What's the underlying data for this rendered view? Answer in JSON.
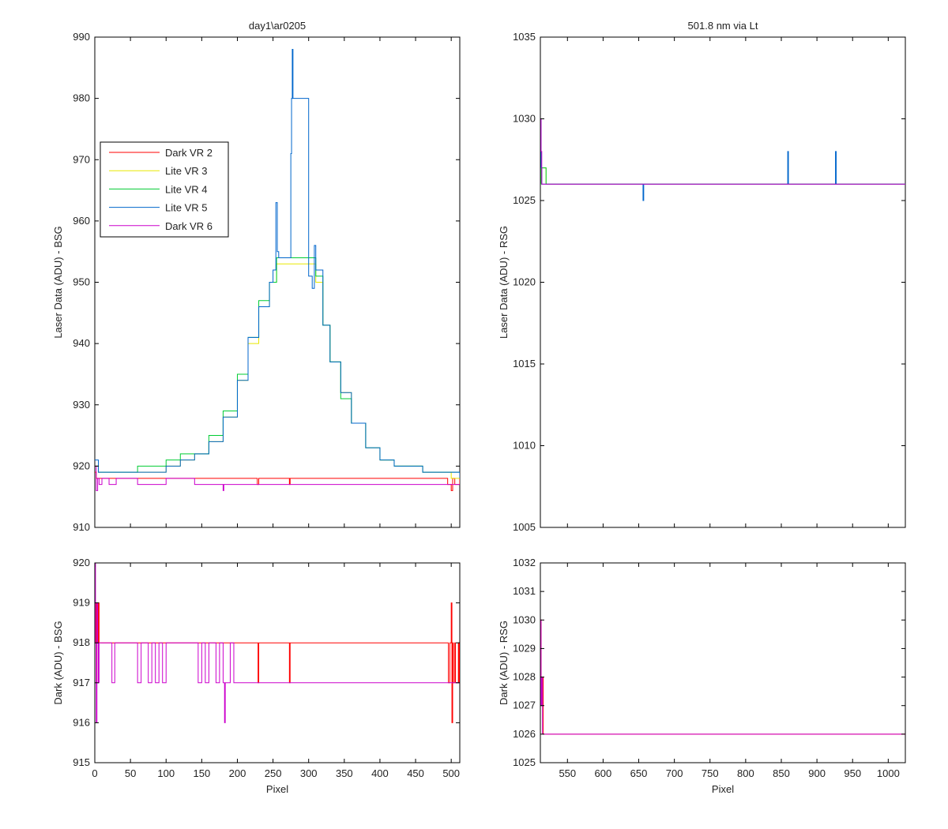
{
  "chart_data": [
    {
      "id": "top-left",
      "type": "line",
      "title": "day1\\ar0205",
      "xlabel": "",
      "ylabel": "Laser Data (ADU) - BSG",
      "xlim": [
        0,
        512
      ],
      "ylim": [
        910,
        990
      ],
      "xticks": [
        0,
        50,
        100,
        150,
        200,
        250,
        300,
        350,
        400,
        450,
        500
      ],
      "yticks": [
        910,
        920,
        930,
        940,
        950,
        960,
        970,
        980,
        990
      ],
      "show_xtick_labels": false,
      "legend": {
        "placement": "upper-left",
        "entries": [
          {
            "label": "Dark VR 2",
            "color": "#ff0000"
          },
          {
            "label": "Lite VR 3",
            "color": "#e8e800"
          },
          {
            "label": "Lite VR 4",
            "color": "#00cc33"
          },
          {
            "label": "Lite VR 5",
            "color": "#0066cc"
          },
          {
            "label": "Dark VR 6",
            "color": "#cc00cc"
          }
        ]
      },
      "series": [
        {
          "name": "Dark VR 2",
          "color": "#ff0000",
          "x": [
            0,
            2,
            4,
            6,
            10,
            227,
            228,
            229,
            230,
            272,
            273,
            274,
            490,
            495,
            500,
            502,
            505,
            512
          ],
          "y": [
            919,
            918,
            918,
            918,
            918,
            918,
            917,
            917,
            918,
            918,
            917,
            918,
            918,
            917,
            916,
            918,
            917,
            918
          ]
        },
        {
          "name": "Lite VR 3",
          "color": "#e8e800",
          "x": [
            0,
            5,
            10,
            40,
            60,
            80,
            100,
            120,
            140,
            160,
            180,
            200,
            215,
            230,
            245,
            255,
            310,
            320,
            330,
            345,
            360,
            380,
            400,
            420,
            440,
            460,
            480,
            500,
            512
          ],
          "y": [
            920,
            919,
            919,
            919,
            919,
            919,
            920,
            921,
            922,
            924,
            928,
            934,
            940,
            946,
            950,
            953,
            950,
            943,
            937,
            932,
            927,
            923,
            921,
            920,
            920,
            919,
            919,
            918,
            918
          ]
        },
        {
          "name": "Lite VR 4",
          "color": "#00cc33",
          "x": [
            0,
            5,
            10,
            40,
            60,
            80,
            100,
            120,
            140,
            160,
            180,
            200,
            215,
            230,
            245,
            255,
            310,
            320,
            330,
            345,
            360,
            380,
            400,
            420,
            440,
            460,
            480,
            500,
            512
          ],
          "y": [
            920,
            919,
            919,
            919,
            920,
            920,
            921,
            922,
            922,
            925,
            929,
            935,
            941,
            947,
            950,
            954,
            951,
            943,
            937,
            931,
            927,
            923,
            921,
            920,
            920,
            919,
            919,
            919,
            919
          ]
        },
        {
          "name": "Lite VR 5",
          "color": "#0066cc",
          "x": [
            0,
            5,
            10,
            40,
            60,
            80,
            100,
            120,
            140,
            160,
            180,
            200,
            215,
            230,
            245,
            250,
            254,
            256,
            258,
            275,
            276,
            277,
            278,
            300,
            305,
            308,
            310,
            320,
            330,
            345,
            360,
            380,
            400,
            420,
            440,
            460,
            480,
            500,
            512
          ],
          "y": [
            921,
            919,
            919,
            919,
            919,
            919,
            920,
            921,
            922,
            924,
            928,
            934,
            941,
            946,
            950,
            952,
            963,
            955,
            954,
            971,
            980,
            988,
            980,
            951,
            949,
            956,
            952,
            943,
            937,
            932,
            927,
            923,
            921,
            920,
            920,
            919,
            919,
            919,
            918
          ]
        },
        {
          "name": "Dark VR 6",
          "color": "#cc00cc",
          "x": [
            0,
            2,
            4,
            6,
            10,
            20,
            30,
            40,
            60,
            80,
            100,
            140,
            160,
            180,
            181,
            182,
            195,
            200,
            300,
            400,
            480,
            490,
            500,
            505,
            512
          ],
          "y": [
            920,
            916,
            918,
            917,
            918,
            917,
            918,
            918,
            917,
            917,
            918,
            917,
            917,
            916,
            917,
            917,
            917,
            917,
            917,
            917,
            917,
            917,
            917,
            917,
            917
          ]
        }
      ]
    },
    {
      "id": "bottom-left",
      "type": "line",
      "title": "",
      "xlabel": "Pixel",
      "ylabel": "Dark (ADU) - BSG",
      "xlim": [
        0,
        512
      ],
      "ylim": [
        915,
        920
      ],
      "xticks": [
        0,
        50,
        100,
        150,
        200,
        250,
        300,
        350,
        400,
        450,
        500
      ],
      "yticks": [
        915,
        916,
        917,
        918,
        919,
        920
      ],
      "show_xtick_labels": true,
      "series": [
        {
          "name": "Dark VR 2",
          "color": "#ff0000",
          "x": [
            0,
            1,
            2,
            3,
            4,
            5,
            6,
            228,
            229,
            230,
            231,
            272,
            273,
            274,
            495,
            496,
            498,
            500,
            501,
            502,
            503,
            505,
            506,
            510,
            511,
            512
          ],
          "y": [
            918,
            919,
            917,
            919,
            918,
            919,
            918,
            918,
            917,
            918,
            918,
            918,
            917,
            918,
            918,
            917,
            918,
            919,
            916,
            918,
            917,
            918,
            917,
            918,
            917,
            918
          ]
        },
        {
          "name": "Dark VR 6",
          "color": "#cc00cc",
          "x": [
            0,
            1,
            2,
            3,
            4,
            5,
            6,
            20,
            24,
            28,
            55,
            60,
            65,
            75,
            80,
            85,
            90,
            95,
            100,
            140,
            145,
            150,
            155,
            160,
            170,
            175,
            180,
            182,
            183,
            190,
            195,
            200,
            300,
            400,
            500,
            512
          ],
          "y": [
            920,
            918,
            916,
            919,
            918,
            917,
            918,
            918,
            917,
            918,
            918,
            917,
            918,
            917,
            918,
            917,
            918,
            917,
            918,
            918,
            917,
            918,
            917,
            918,
            917,
            918,
            917,
            916,
            917,
            918,
            917,
            917,
            917,
            917,
            917,
            917
          ]
        }
      ]
    },
    {
      "id": "top-right",
      "type": "line",
      "title": "501.8 nm via Lt",
      "xlabel": "",
      "ylabel": "Laser Data (ADU) - RSG",
      "xlim": [
        512,
        1024
      ],
      "ylim": [
        1005,
        1035
      ],
      "xticks": [
        550,
        600,
        650,
        700,
        750,
        800,
        850,
        900,
        950,
        1000
      ],
      "yticks": [
        1005,
        1010,
        1015,
        1020,
        1025,
        1030,
        1035
      ],
      "show_xtick_labels": false,
      "series": [
        {
          "name": "Lite VR 3",
          "color": "#e8e800",
          "x": [
            512,
            513,
            520,
            700,
            900,
            1024
          ],
          "y": [
            1026,
            1027,
            1026,
            1026,
            1026,
            1026
          ]
        },
        {
          "name": "Lite VR 4",
          "color": "#00cc33",
          "x": [
            512,
            513,
            520,
            700,
            900,
            1024
          ],
          "y": [
            1026,
            1027,
            1026,
            1026,
            1026,
            1026
          ]
        },
        {
          "name": "Lite VR 5",
          "color": "#0066cc",
          "x": [
            512,
            513,
            514,
            655,
            656,
            657,
            858,
            859,
            860,
            925,
            926,
            927,
            1024
          ],
          "y": [
            1030,
            1027,
            1026,
            1026,
            1025,
            1026,
            1026,
            1028,
            1026,
            1026,
            1028,
            1026,
            1026
          ]
        },
        {
          "name": "Dark VR 6",
          "color": "#cc00cc",
          "x": [
            512,
            513,
            514,
            1024
          ],
          "y": [
            1030,
            1028,
            1026,
            1026
          ]
        }
      ]
    },
    {
      "id": "bottom-right",
      "type": "line",
      "title": "",
      "xlabel": "Pixel",
      "ylabel": "Dark (ADU) - RSG",
      "xlim": [
        512,
        1024
      ],
      "ylim": [
        1025,
        1032
      ],
      "xticks": [
        550,
        600,
        650,
        700,
        750,
        800,
        850,
        900,
        950,
        1000
      ],
      "yticks": [
        1025,
        1026,
        1027,
        1028,
        1029,
        1030,
        1031,
        1032
      ],
      "show_xtick_labels": true,
      "series": [
        {
          "name": "Dark VR 2",
          "color": "#ff0000",
          "x": [
            512,
            513,
            514,
            515,
            516,
            1024
          ],
          "y": [
            1030,
            1028,
            1027,
            1028,
            1026,
            1026
          ]
        },
        {
          "name": "Dark VR 6",
          "color": "#cc00cc",
          "x": [
            512,
            513,
            514,
            515,
            516,
            1024
          ],
          "y": [
            1030,
            1027,
            1028,
            1026,
            1026,
            1026
          ]
        }
      ]
    }
  ]
}
